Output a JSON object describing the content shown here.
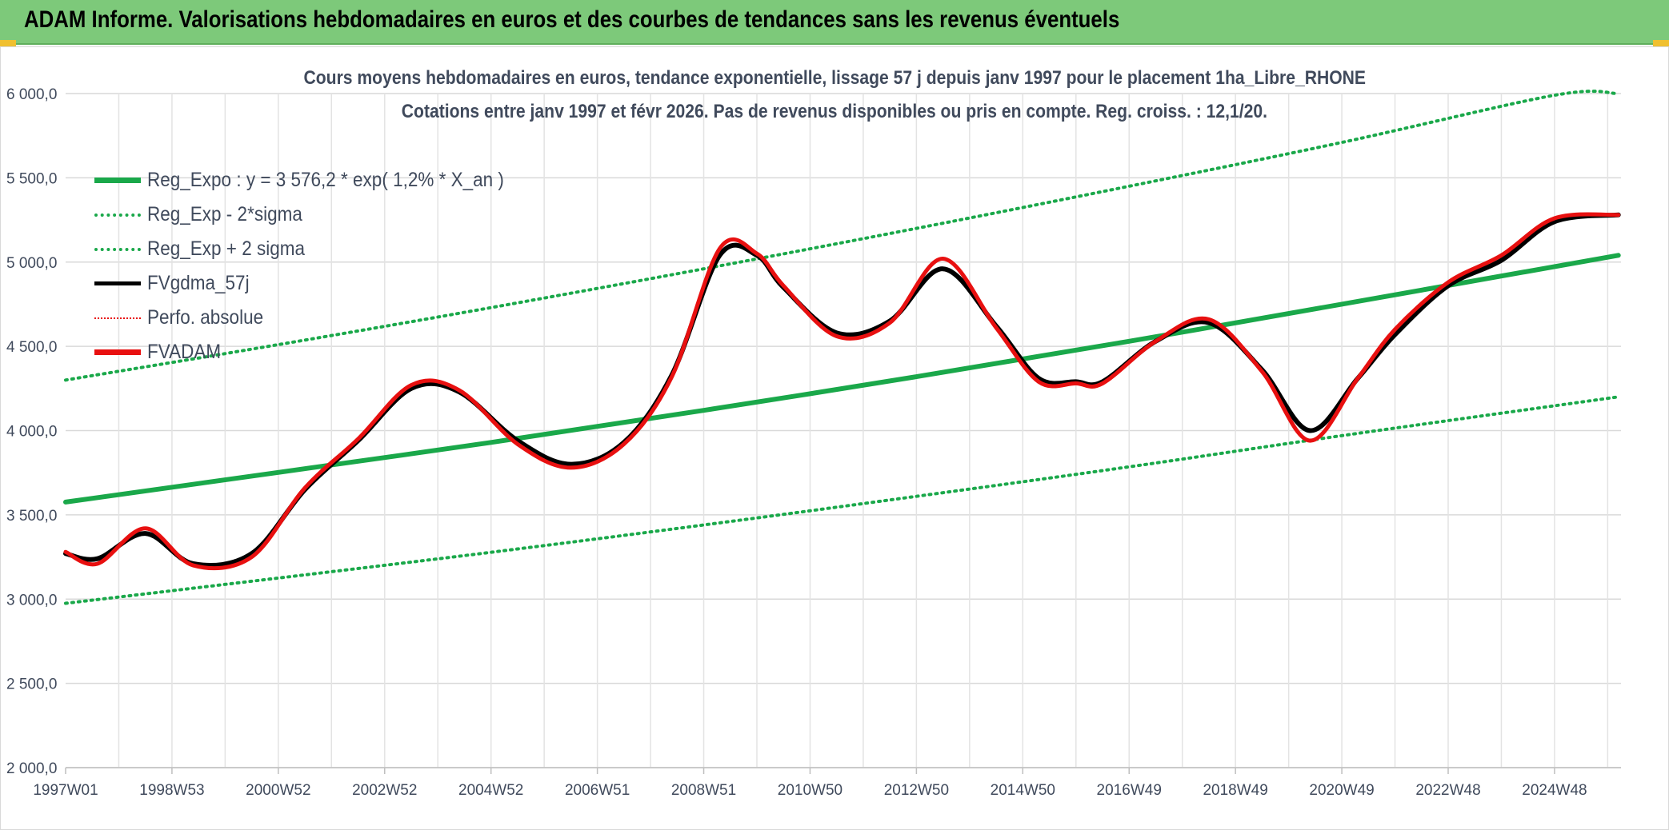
{
  "banner": {
    "title": "ADAM Informe. Valorisations hebdomadaires en euros et des courbes de tendances sans les revenus éventuels"
  },
  "colors": {
    "banner_bg": "#7dc97a",
    "trend_green": "#1aa84a",
    "band_green": "#1aa84a",
    "black_series": "#000000",
    "red_series": "#e81010"
  },
  "chart_data": {
    "type": "line",
    "title_line1": "Cours moyens hebdomadaires en euros, tendance exponentielle, lissage 57 j depuis janv 1997 pour le placement 1ha_Libre_RHONE",
    "title_line2": "Cotations entre janv 1997 et févr 2026. Pas de revenus disponibles ou pris en compte. Reg. croiss. : 12,1/20.",
    "ylim": [
      2000,
      6000
    ],
    "xlim": [
      1997.0,
      2026.25
    ],
    "y_ticks": [
      {
        "value": 2000,
        "label": "2 000,0"
      },
      {
        "value": 2500,
        "label": "2 500,0"
      },
      {
        "value": 3000,
        "label": "3 000,0"
      },
      {
        "value": 3500,
        "label": "3 500,0"
      },
      {
        "value": 4000,
        "label": "4 000,0"
      },
      {
        "value": 4500,
        "label": "4 500,0"
      },
      {
        "value": 5000,
        "label": "5 000,0"
      },
      {
        "value": 5500,
        "label": "5 500,0"
      },
      {
        "value": 6000,
        "label": "6 000,0"
      }
    ],
    "x_ticks": [
      {
        "value": 1997.0,
        "label": "1997W01"
      },
      {
        "value": 1999.0,
        "label": "1998W53"
      },
      {
        "value": 2001.0,
        "label": "2000W52"
      },
      {
        "value": 2003.0,
        "label": "2002W52"
      },
      {
        "value": 2005.0,
        "label": "2004W52"
      },
      {
        "value": 2007.0,
        "label": "2006W51"
      },
      {
        "value": 2009.0,
        "label": "2008W51"
      },
      {
        "value": 2011.0,
        "label": "2010W50"
      },
      {
        "value": 2013.0,
        "label": "2012W50"
      },
      {
        "value": 2015.0,
        "label": "2014W50"
      },
      {
        "value": 2017.0,
        "label": "2016W49"
      },
      {
        "value": 2019.0,
        "label": "2018W49"
      },
      {
        "value": 2021.0,
        "label": "2020W49"
      },
      {
        "value": 2023.0,
        "label": "2022W48"
      },
      {
        "value": 2025.0,
        "label": "2024W48"
      }
    ],
    "minor_x_ticks": [
      1998.0,
      2000.0,
      2002.0,
      2004.0,
      2006.0,
      2008.0,
      2010.0,
      2012.0,
      2014.0,
      2016.0,
      2018.0,
      2020.0,
      2022.0,
      2024.0,
      2026.0
    ],
    "legend": [
      {
        "label": "Reg_Expo : y = 3 576,2 * exp( 1,2% *  X_an )",
        "style": "solid-thick",
        "color": "#1aa84a"
      },
      {
        "label": "Reg_Exp - 2*sigma",
        "style": "dotted",
        "color": "#1aa84a"
      },
      {
        "label": "Reg_Exp + 2 sigma",
        "style": "dotted",
        "color": "#1aa84a"
      },
      {
        "label": "FVgdma_57j",
        "style": "solid",
        "color": "#000000"
      },
      {
        "label": "Perfo. absolue",
        "style": "dotted-thin",
        "color": "#e81010"
      },
      {
        "label": "FVADAM",
        "style": "solid-thick",
        "color": "#e81010"
      }
    ],
    "series": [
      {
        "name": "Reg_Expo : y = 3 576,2 * exp( 1,2% *  X_an )",
        "x": [
          1997.0,
          2001.0,
          2005.0,
          2009.0,
          2013.0,
          2017.0,
          2021.0,
          2026.2
        ],
        "values": [
          3576,
          3752,
          3930,
          4120,
          4320,
          4530,
          4750,
          5040
        ]
      },
      {
        "name": "Reg_Exp - 2*sigma",
        "x": [
          1997.0,
          2001.0,
          2005.0,
          2009.0,
          2013.0,
          2017.0,
          2021.0,
          2026.2
        ],
        "values": [
          2975,
          3125,
          3278,
          3440,
          3610,
          3785,
          3970,
          4200
        ]
      },
      {
        "name": "Reg_Exp + 2 sigma",
        "x": [
          1997.0,
          2001.0,
          2005.0,
          2009.0,
          2013.0,
          2017.0,
          2021.0,
          2025.0,
          2026.2
        ],
        "values": [
          4300,
          4510,
          4730,
          4960,
          5200,
          5450,
          5710,
          5990,
          6000
        ]
      },
      {
        "name": "FVgdma_57j",
        "x": [
          1997.0,
          1997.6,
          1998.5,
          1999.4,
          2000.5,
          2001.5,
          2002.5,
          2003.5,
          2004.4,
          2005.5,
          2006.5,
          2007.5,
          2008.4,
          2009.3,
          2010.0,
          2010.5,
          2011.5,
          2012.5,
          2013.5,
          2014.5,
          2015.3,
          2016.0,
          2016.5,
          2017.5,
          2018.5,
          2019.5,
          2020.4,
          2021.3,
          2022.0,
          2023.0,
          2024.0,
          2025.0,
          2026.2
        ],
        "values": [
          3270,
          3240,
          3390,
          3210,
          3270,
          3650,
          3940,
          4250,
          4230,
          3940,
          3800,
          3930,
          4330,
          5040,
          5040,
          4850,
          4580,
          4650,
          4960,
          4620,
          4310,
          4290,
          4290,
          4530,
          4640,
          4360,
          4000,
          4310,
          4570,
          4860,
          5010,
          5240,
          5280
        ]
      },
      {
        "name": "FVADAM",
        "x": [
          1997.0,
          1997.6,
          1998.5,
          1999.4,
          2000.5,
          2001.5,
          2002.5,
          2003.5,
          2004.4,
          2005.5,
          2006.5,
          2007.5,
          2008.4,
          2009.3,
          2010.0,
          2010.5,
          2011.5,
          2012.5,
          2013.5,
          2014.5,
          2015.3,
          2016.0,
          2016.5,
          2017.5,
          2018.5,
          2019.5,
          2020.4,
          2021.3,
          2022.0,
          2023.0,
          2024.0,
          2025.0,
          2026.2
        ],
        "values": [
          3280,
          3210,
          3420,
          3200,
          3250,
          3660,
          3950,
          4270,
          4240,
          3920,
          3780,
          3920,
          4320,
          5080,
          5050,
          4860,
          4560,
          4640,
          5020,
          4610,
          4290,
          4280,
          4280,
          4530,
          4660,
          4350,
          3940,
          4310,
          4600,
          4880,
          5040,
          5260,
          5280
        ]
      }
    ]
  }
}
